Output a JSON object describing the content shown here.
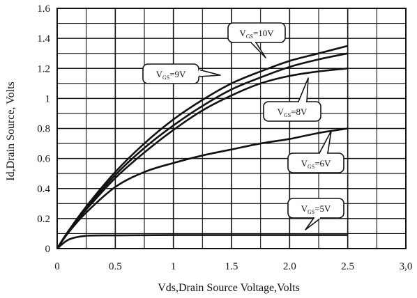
{
  "chart_data": {
    "type": "line",
    "title": "",
    "xlabel": "Vds,Drain Source Voltage,Volts",
    "ylabel": "Id,Drain Source, Volts",
    "xlim": [
      0,
      3.0
    ],
    "ylim": [
      0,
      1.6
    ],
    "x_ticks": [
      "0",
      "0.5",
      "1",
      "1.5",
      "2.0",
      "2.5",
      "3,0"
    ],
    "x_tick_values": [
      0,
      0.5,
      1,
      1.5,
      2.0,
      2.5,
      3.0
    ],
    "y_ticks": [
      "0",
      "0.2",
      "0.4",
      "0.6",
      "0.8",
      "1",
      "1.2",
      "1.4",
      "1.6"
    ],
    "y_tick_values": [
      0,
      0.2,
      0.4,
      0.6,
      0.8,
      1.0,
      1.2,
      1.4,
      1.6
    ],
    "grid": true,
    "x": [
      0,
      0.1,
      0.25,
      0.5,
      0.75,
      1.0,
      1.25,
      1.5,
      1.75,
      2.0,
      2.25,
      2.5
    ],
    "series": [
      {
        "label": "V_GS=10V",
        "values": [
          0,
          0.12,
          0.28,
          0.51,
          0.7,
          0.86,
          0.99,
          1.1,
          1.18,
          1.25,
          1.3,
          1.35
        ]
      },
      {
        "label": "V_GS=9V",
        "values": [
          0,
          0.12,
          0.27,
          0.49,
          0.67,
          0.82,
          0.95,
          1.06,
          1.14,
          1.21,
          1.26,
          1.3
        ]
      },
      {
        "label": "V_GS=8V",
        "values": [
          0,
          0.12,
          0.26,
          0.47,
          0.64,
          0.79,
          0.92,
          1.02,
          1.1,
          1.15,
          1.18,
          1.2
        ]
      },
      {
        "label": "V_GS=6V",
        "values": [
          0,
          0.11,
          0.24,
          0.41,
          0.51,
          0.57,
          0.62,
          0.66,
          0.7,
          0.73,
          0.77,
          0.8
        ]
      },
      {
        "label": "V_GS=5V",
        "values": [
          0,
          0.06,
          0.085,
          0.088,
          0.089,
          0.09,
          0.09,
          0.09,
          0.09,
          0.09,
          0.09,
          0.09
        ]
      }
    ],
    "callouts": [
      {
        "main": "V",
        "sub": "GS",
        "rest": "=10V"
      },
      {
        "main": "V",
        "sub": "GS",
        "rest": "=9V"
      },
      {
        "main": "V",
        "sub": "GS",
        "rest": "=8V"
      },
      {
        "main": "V",
        "sub": "GS",
        "rest": "=6V"
      },
      {
        "main": "V",
        "sub": "GS",
        "rest": "=5V"
      }
    ]
  }
}
